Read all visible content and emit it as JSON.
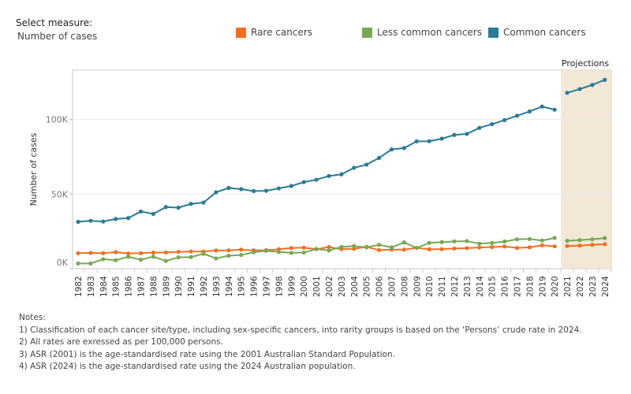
{
  "filter": {
    "label": "Select measure:",
    "value": "Number of cases"
  },
  "colors": {
    "rare": "#f07022",
    "less_common": "#78a855",
    "common": "#2a7b96",
    "projection_band": "#f3e8d7"
  },
  "notes": {
    "title": "Notes:",
    "items": [
      "1) Classification of each cancer site/type, including sex-specific cancers, into rarity groups is based on the ‘Persons’ crude rate in 2024.",
      "2) All rates are exressed as per 100,000 persons.",
      "3) ASR (2001) is the age-standardised rate using the 2001 Australian Standard Population.",
      "4) ASR (2024) is the age-standardised rate using the 2024 Australian population."
    ]
  },
  "chart_data": {
    "type": "line",
    "ylabel": "Number of cases",
    "xlabel": "",
    "projection_label": "Projections",
    "projection_range": [
      2021,
      2024
    ],
    "ylim": [
      0,
      133000
    ],
    "yticks": [
      0,
      50000,
      100000
    ],
    "ytick_labels": [
      "0K",
      "50K",
      "100K"
    ],
    "grid": "horizontal",
    "legend_position": "top",
    "x": [
      1982,
      1983,
      1984,
      1985,
      1986,
      1987,
      1988,
      1989,
      1990,
      1991,
      1992,
      1993,
      1994,
      1995,
      1996,
      1997,
      1998,
      1999,
      2000,
      2001,
      2002,
      2003,
      2004,
      2005,
      2006,
      2007,
      2008,
      2009,
      2010,
      2011,
      2012,
      2013,
      2014,
      2015,
      2016,
      2017,
      2018,
      2019,
      2020,
      2021,
      2022,
      2023,
      2024
    ],
    "series": [
      {
        "name": "Rare cancers",
        "color": "#f07022",
        "values": [
          10400,
          10600,
          10400,
          11100,
          10200,
          10400,
          10800,
          10900,
          11300,
          11500,
          11500,
          12200,
          12300,
          12800,
          12300,
          12400,
          13000,
          13900,
          14100,
          13100,
          14500,
          13100,
          13400,
          14600,
          12500,
          12800,
          12800,
          14000,
          13000,
          13100,
          13500,
          13800,
          14200,
          14500,
          14900,
          13900,
          14300,
          15700,
          15000,
          15200,
          15500,
          16000,
          16400
        ]
      },
      {
        "name": "Less common cancers",
        "color": "#78a855",
        "values": [
          3500,
          3500,
          6400,
          5700,
          8000,
          6000,
          8100,
          5200,
          7600,
          7800,
          10000,
          6900,
          8700,
          9200,
          11000,
          12000,
          11300,
          10600,
          10800,
          13200,
          12200,
          14600,
          15200,
          14300,
          16000,
          14300,
          17600,
          13900,
          17300,
          17800,
          18300,
          18500,
          16800,
          17300,
          18200,
          19700,
          19900,
          18900,
          20600,
          18700,
          19200,
          19700,
          20500
        ]
      },
      {
        "name": "Common cancers",
        "color": "#2a7b96",
        "values": [
          31400,
          32100,
          31600,
          33300,
          33900,
          38300,
          36700,
          41300,
          40900,
          43400,
          44300,
          51200,
          54100,
          53300,
          52000,
          52200,
          53800,
          55400,
          58000,
          59600,
          62100,
          63200,
          67600,
          69700,
          74200,
          79900,
          80800,
          85300,
          85400,
          87100,
          89600,
          90300,
          94300,
          96800,
          99500,
          102500,
          105300,
          108600,
          106500,
          117800,
          120300,
          123100,
          126500
        ]
      }
    ]
  }
}
